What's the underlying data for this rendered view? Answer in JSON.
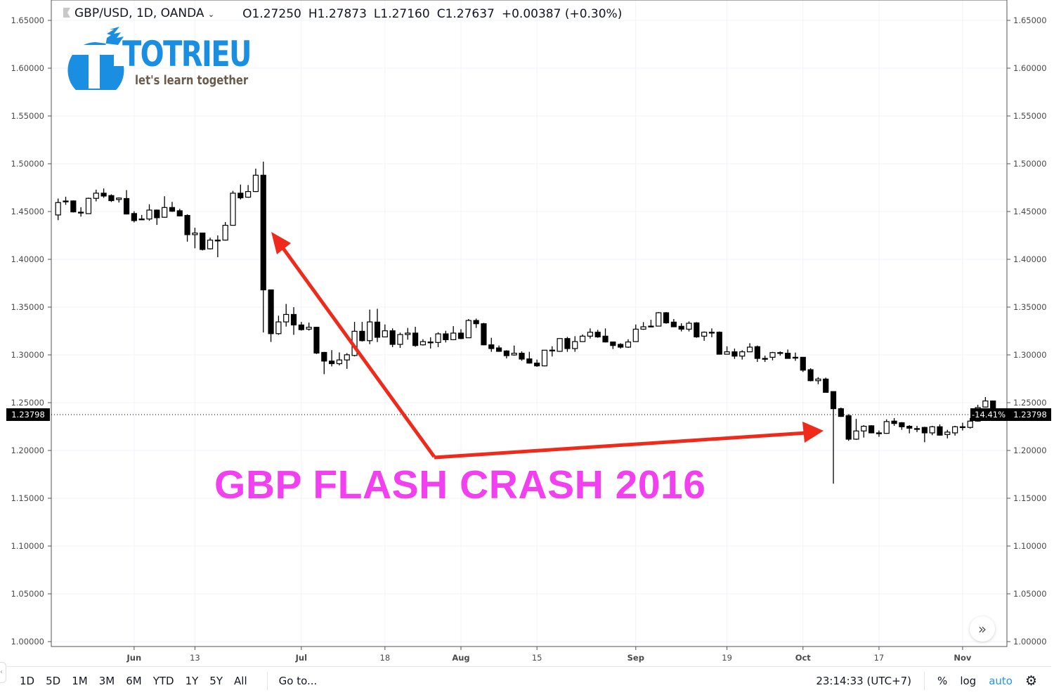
{
  "header": {
    "symbol": "GBP/USD, 1D, OANDA",
    "open": "O1.27250",
    "high": "H1.27873",
    "low": "L1.27160",
    "close": "C1.27637",
    "change": "+0.00387 (+0.30%)"
  },
  "logo": {
    "name": "TOTRIEU",
    "tagline": "let's learn together",
    "color": "#1a8ee0"
  },
  "annotation": {
    "text": "GBP FLASH CRASH 2016",
    "text_color": "#f23ff0",
    "arrow_color": "#f02a1a"
  },
  "price_labels": {
    "last_price": "1.23798",
    "percent": "-14.41%"
  },
  "toolbar": {
    "ranges": [
      "1D",
      "5D",
      "1M",
      "3M",
      "6M",
      "YTD",
      "1Y",
      "5Y",
      "All"
    ],
    "goto": "Go to...",
    "clock": "23:14:33 (UTC+7)",
    "percent": "%",
    "log": "log",
    "auto": "auto",
    "settings_icon": "gear-icon",
    "scroll_icon": "double-chevron-right-icon"
  },
  "chart_data": {
    "type": "candlestick",
    "ylim": [
      1.0,
      1.65
    ],
    "yticks": [
      "1.65000",
      "1.60000",
      "1.55000",
      "1.50000",
      "1.45000",
      "1.40000",
      "1.35000",
      "1.30000",
      "1.25000",
      "1.20000",
      "1.15000",
      "1.10000",
      "1.05000",
      "1.00000"
    ],
    "xticks": [
      {
        "label": "Jun",
        "bar": 10,
        "bold": true
      },
      {
        "label": "13",
        "bar": 18
      },
      {
        "label": "Jul",
        "bar": 32,
        "bold": true
      },
      {
        "label": "18",
        "bar": 43
      },
      {
        "label": "Aug",
        "bar": 53,
        "bold": true
      },
      {
        "label": "15",
        "bar": 63
      },
      {
        "label": "Sep",
        "bar": 76,
        "bold": true
      },
      {
        "label": "19",
        "bar": 88
      },
      {
        "label": "Oct",
        "bar": 98,
        "bold": true
      },
      {
        "label": "17",
        "bar": 108
      },
      {
        "label": "Nov",
        "bar": 119,
        "bold": true
      }
    ],
    "grid": true,
    "colors": {
      "up": "#ffffff",
      "down": "#000000",
      "border": "#000000"
    },
    "ohlc_fields": [
      "open",
      "high",
      "low",
      "close"
    ],
    "candles": [
      [
        1.4464,
        1.4636,
        1.441,
        1.4594
      ],
      [
        1.4606,
        1.4655,
        1.457,
        1.461
      ],
      [
        1.4611,
        1.4616,
        1.449,
        1.4496
      ],
      [
        1.4493,
        1.4545,
        1.4447,
        1.449
      ],
      [
        1.4478,
        1.4645,
        1.4475,
        1.4638
      ],
      [
        1.4638,
        1.4729,
        1.4606,
        1.4692
      ],
      [
        1.4692,
        1.4741,
        1.4643,
        1.4662
      ],
      [
        1.4667,
        1.468,
        1.46,
        1.4614
      ],
      [
        1.4626,
        1.4648,
        1.4594,
        1.4641
      ],
      [
        1.4636,
        1.4724,
        1.4469,
        1.4474
      ],
      [
        1.4479,
        1.4503,
        1.4386,
        1.4405
      ],
      [
        1.4422,
        1.4464,
        1.4418,
        1.442
      ],
      [
        1.4422,
        1.4576,
        1.4403,
        1.4515
      ],
      [
        1.4515,
        1.452,
        1.436,
        1.4435
      ],
      [
        1.444,
        1.466,
        1.4435,
        1.4542
      ],
      [
        1.4542,
        1.4601,
        1.4496,
        1.4503
      ],
      [
        1.4508,
        1.4528,
        1.4449,
        1.4454
      ],
      [
        1.4459,
        1.4471,
        1.4185,
        1.4258
      ],
      [
        1.4258,
        1.4331,
        1.4115,
        1.4275
      ],
      [
        1.4275,
        1.4277,
        1.4093,
        1.4103
      ],
      [
        1.411,
        1.4226,
        1.4103,
        1.4201
      ],
      [
        1.4201,
        1.425,
        1.4022,
        1.4201
      ],
      [
        1.4201,
        1.439,
        1.4196,
        1.4356
      ],
      [
        1.4356,
        1.4716,
        1.4356,
        1.4692
      ],
      [
        1.4692,
        1.4782,
        1.4626,
        1.4643
      ],
      [
        1.465,
        1.4777,
        1.4645,
        1.4709
      ],
      [
        1.4709,
        1.4949,
        1.4704,
        1.488
      ],
      [
        1.488,
        1.5022,
        1.3234,
        1.368
      ],
      [
        1.368,
        1.368,
        1.3135,
        1.3222
      ],
      [
        1.3222,
        1.341,
        1.321,
        1.3345
      ],
      [
        1.3345,
        1.3533,
        1.3296,
        1.3423
      ],
      [
        1.3423,
        1.3499,
        1.321,
        1.3313
      ],
      [
        1.3313,
        1.3345,
        1.3254,
        1.3264
      ],
      [
        1.3269,
        1.3338,
        1.3254,
        1.3289
      ],
      [
        1.3289,
        1.3294,
        1.3009,
        1.3019
      ],
      [
        1.3026,
        1.3031,
        1.2798,
        1.2935
      ],
      [
        1.2935,
        1.305,
        1.2879,
        1.2908
      ],
      [
        1.2908,
        1.3026,
        1.289,
        1.2947
      ],
      [
        1.2947,
        1.3018,
        1.2854,
        1.3001
      ],
      [
        1.2994,
        1.3345,
        1.2984,
        1.3247
      ],
      [
        1.3247,
        1.3345,
        1.314,
        1.3149
      ],
      [
        1.3149,
        1.3474,
        1.3112,
        1.3345
      ],
      [
        1.3343,
        1.3482,
        1.3134,
        1.3184
      ],
      [
        1.3188,
        1.3318,
        1.3184,
        1.3252
      ],
      [
        1.3252,
        1.3277,
        1.3081,
        1.311
      ],
      [
        1.311,
        1.3233,
        1.3073,
        1.3213
      ],
      [
        1.3213,
        1.3282,
        1.3159,
        1.3228
      ],
      [
        1.3228,
        1.3294,
        1.3085,
        1.3098
      ],
      [
        1.3105,
        1.3164,
        1.3098,
        1.3139
      ],
      [
        1.3134,
        1.3184,
        1.3066,
        1.3135
      ],
      [
        1.313,
        1.3237,
        1.3081,
        1.322
      ],
      [
        1.322,
        1.3252,
        1.313,
        1.3159
      ],
      [
        1.3159,
        1.3301,
        1.3154,
        1.3228
      ],
      [
        1.3228,
        1.3269,
        1.3164,
        1.3171
      ],
      [
        1.3179,
        1.3375,
        1.3179,
        1.336
      ],
      [
        1.336,
        1.338,
        1.3282,
        1.3326
      ],
      [
        1.3326,
        1.3335,
        1.31,
        1.3105
      ],
      [
        1.3105,
        1.3179,
        1.3032,
        1.3066
      ],
      [
        1.3073,
        1.3098,
        1.3032,
        1.3037
      ],
      [
        1.3041,
        1.3049,
        1.2963,
        1.2992
      ],
      [
        1.2999,
        1.3098,
        1.2992,
        1.3017
      ],
      [
        1.3017,
        1.3037,
        1.2938,
        1.2956
      ],
      [
        1.2958,
        1.3032,
        1.2909,
        1.2914
      ],
      [
        1.2914,
        1.2951,
        1.2875,
        1.2885
      ],
      [
        1.2885,
        1.3049,
        1.288,
        1.3049
      ],
      [
        1.3049,
        1.309,
        1.2983,
        1.305
      ],
      [
        1.3037,
        1.3171,
        1.3032,
        1.3171
      ],
      [
        1.3171,
        1.3188,
        1.3032,
        1.3066
      ],
      [
        1.3066,
        1.3196,
        1.3032,
        1.3139
      ],
      [
        1.3139,
        1.3213,
        1.3135,
        1.3196
      ],
      [
        1.3196,
        1.3277,
        1.3171,
        1.3237
      ],
      [
        1.3237,
        1.3262,
        1.3179,
        1.3188
      ],
      [
        1.3196,
        1.3277,
        1.313,
        1.3135
      ],
      [
        1.3135,
        1.3139,
        1.3061,
        1.3098
      ],
      [
        1.311,
        1.3122,
        1.3066,
        1.3081
      ],
      [
        1.3081,
        1.3164,
        1.3073,
        1.3135
      ],
      [
        1.3139,
        1.3318,
        1.3135,
        1.3269
      ],
      [
        1.3269,
        1.3343,
        1.3262,
        1.3294
      ],
      [
        1.3299,
        1.3367,
        1.3294,
        1.3301
      ],
      [
        1.3301,
        1.3448,
        1.3301,
        1.3441
      ],
      [
        1.3441,
        1.3448,
        1.3326,
        1.3335
      ],
      [
        1.3343,
        1.3375,
        1.3294,
        1.3294
      ],
      [
        1.3299,
        1.3331,
        1.3245,
        1.3269
      ],
      [
        1.3269,
        1.335,
        1.3245,
        1.3331
      ],
      [
        1.3335,
        1.3343,
        1.3179,
        1.3188
      ],
      [
        1.3196,
        1.3245,
        1.3147,
        1.3237
      ],
      [
        1.3237,
        1.3277,
        1.3184,
        1.3237
      ],
      [
        1.3237,
        1.3245,
        1.3007,
        1.3007
      ],
      [
        1.3007,
        1.309,
        1.3007,
        1.3032
      ],
      [
        1.3032,
        1.3066,
        1.2958,
        1.2987
      ],
      [
        1.2987,
        1.3049,
        1.2951,
        1.3032
      ],
      [
        1.3032,
        1.3122,
        1.3032,
        1.3081
      ],
      [
        1.3086,
        1.3098,
        1.2926,
        1.2963
      ],
      [
        1.2963,
        1.2992,
        1.2926,
        1.2963
      ],
      [
        1.2975,
        1.3032,
        1.2943,
        1.3024
      ],
      [
        1.3024,
        1.3037,
        1.2992,
        1.3024
      ],
      [
        1.3017,
        1.3056,
        1.2963,
        1.2963
      ],
      [
        1.2975,
        1.3024,
        1.2938,
        1.2975
      ],
      [
        1.2975,
        1.2975,
        1.2821,
        1.284
      ],
      [
        1.2845,
        1.286,
        1.2723,
        1.273
      ],
      [
        1.273,
        1.2767,
        1.2693,
        1.2747
      ],
      [
        1.2747,
        1.2762,
        1.2608,
        1.2608
      ],
      [
        1.2616,
        1.2616,
        1.1653,
        1.2437
      ],
      [
        1.2437,
        1.2449,
        1.2351,
        1.2356
      ],
      [
        1.2363,
        1.238,
        1.2101,
        1.2118
      ],
      [
        1.2118,
        1.2331,
        1.2111,
        1.2204
      ],
      [
        1.2204,
        1.2265,
        1.2135,
        1.2253
      ],
      [
        1.2258,
        1.2265,
        1.2179,
        1.2184
      ],
      [
        1.2184,
        1.2209,
        1.2143,
        1.2184
      ],
      [
        1.2179,
        1.2326,
        1.2175,
        1.2302
      ],
      [
        1.2307,
        1.2339,
        1.2258,
        1.2282
      ],
      [
        1.229,
        1.2297,
        1.2216,
        1.2248
      ],
      [
        1.2253,
        1.2265,
        1.2179,
        1.2233
      ],
      [
        1.2229,
        1.2258,
        1.2192,
        1.2229
      ],
      [
        1.2241,
        1.2248,
        1.2086,
        1.2184
      ],
      [
        1.2184,
        1.2258,
        1.216,
        1.2248
      ],
      [
        1.2248,
        1.2273,
        1.2155,
        1.216
      ],
      [
        1.2167,
        1.2216,
        1.2126,
        1.2192
      ],
      [
        1.2184,
        1.2258,
        1.2155,
        1.2248
      ],
      [
        1.2248,
        1.229,
        1.2209,
        1.2248
      ],
      [
        1.2241,
        1.2339,
        1.2229,
        1.2307
      ],
      [
        1.2307,
        1.2478,
        1.2302,
        1.2449
      ],
      [
        1.2454,
        1.2559,
        1.2449,
        1.2518
      ],
      [
        1.2518,
        1.252,
        1.2375,
        1.23798
      ]
    ]
  }
}
